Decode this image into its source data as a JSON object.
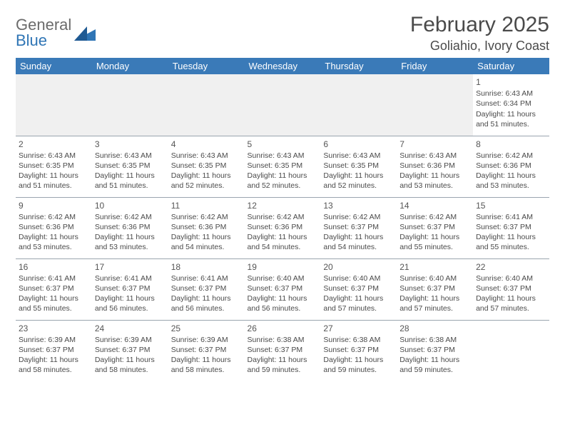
{
  "brand": {
    "word1": "General",
    "word2": "Blue",
    "word1_color": "#6b6b6b",
    "word2_color": "#2f75b5",
    "mark_color": "#2f75b5"
  },
  "title": "February 2025",
  "location": "Goliahio, Ivory Coast",
  "colors": {
    "header_band": "#3a7ab8",
    "header_text": "#ffffff",
    "grid_line": "#9aa5af",
    "empty_row_bg": "#f0f0f0",
    "body_text": "#4a4a4a"
  },
  "weekdays": [
    "Sunday",
    "Monday",
    "Tuesday",
    "Wednesday",
    "Thursday",
    "Friday",
    "Saturday"
  ],
  "weeks": [
    [
      null,
      null,
      null,
      null,
      null,
      null,
      {
        "n": "1",
        "sr": "Sunrise: 6:43 AM",
        "ss": "Sunset: 6:34 PM",
        "dl": "Daylight: 11 hours and 51 minutes."
      }
    ],
    [
      {
        "n": "2",
        "sr": "Sunrise: 6:43 AM",
        "ss": "Sunset: 6:35 PM",
        "dl": "Daylight: 11 hours and 51 minutes."
      },
      {
        "n": "3",
        "sr": "Sunrise: 6:43 AM",
        "ss": "Sunset: 6:35 PM",
        "dl": "Daylight: 11 hours and 51 minutes."
      },
      {
        "n": "4",
        "sr": "Sunrise: 6:43 AM",
        "ss": "Sunset: 6:35 PM",
        "dl": "Daylight: 11 hours and 52 minutes."
      },
      {
        "n": "5",
        "sr": "Sunrise: 6:43 AM",
        "ss": "Sunset: 6:35 PM",
        "dl": "Daylight: 11 hours and 52 minutes."
      },
      {
        "n": "6",
        "sr": "Sunrise: 6:43 AM",
        "ss": "Sunset: 6:35 PM",
        "dl": "Daylight: 11 hours and 52 minutes."
      },
      {
        "n": "7",
        "sr": "Sunrise: 6:43 AM",
        "ss": "Sunset: 6:36 PM",
        "dl": "Daylight: 11 hours and 53 minutes."
      },
      {
        "n": "8",
        "sr": "Sunrise: 6:42 AM",
        "ss": "Sunset: 6:36 PM",
        "dl": "Daylight: 11 hours and 53 minutes."
      }
    ],
    [
      {
        "n": "9",
        "sr": "Sunrise: 6:42 AM",
        "ss": "Sunset: 6:36 PM",
        "dl": "Daylight: 11 hours and 53 minutes."
      },
      {
        "n": "10",
        "sr": "Sunrise: 6:42 AM",
        "ss": "Sunset: 6:36 PM",
        "dl": "Daylight: 11 hours and 53 minutes."
      },
      {
        "n": "11",
        "sr": "Sunrise: 6:42 AM",
        "ss": "Sunset: 6:36 PM",
        "dl": "Daylight: 11 hours and 54 minutes."
      },
      {
        "n": "12",
        "sr": "Sunrise: 6:42 AM",
        "ss": "Sunset: 6:36 PM",
        "dl": "Daylight: 11 hours and 54 minutes."
      },
      {
        "n": "13",
        "sr": "Sunrise: 6:42 AM",
        "ss": "Sunset: 6:37 PM",
        "dl": "Daylight: 11 hours and 54 minutes."
      },
      {
        "n": "14",
        "sr": "Sunrise: 6:42 AM",
        "ss": "Sunset: 6:37 PM",
        "dl": "Daylight: 11 hours and 55 minutes."
      },
      {
        "n": "15",
        "sr": "Sunrise: 6:41 AM",
        "ss": "Sunset: 6:37 PM",
        "dl": "Daylight: 11 hours and 55 minutes."
      }
    ],
    [
      {
        "n": "16",
        "sr": "Sunrise: 6:41 AM",
        "ss": "Sunset: 6:37 PM",
        "dl": "Daylight: 11 hours and 55 minutes."
      },
      {
        "n": "17",
        "sr": "Sunrise: 6:41 AM",
        "ss": "Sunset: 6:37 PM",
        "dl": "Daylight: 11 hours and 56 minutes."
      },
      {
        "n": "18",
        "sr": "Sunrise: 6:41 AM",
        "ss": "Sunset: 6:37 PM",
        "dl": "Daylight: 11 hours and 56 minutes."
      },
      {
        "n": "19",
        "sr": "Sunrise: 6:40 AM",
        "ss": "Sunset: 6:37 PM",
        "dl": "Daylight: 11 hours and 56 minutes."
      },
      {
        "n": "20",
        "sr": "Sunrise: 6:40 AM",
        "ss": "Sunset: 6:37 PM",
        "dl": "Daylight: 11 hours and 57 minutes."
      },
      {
        "n": "21",
        "sr": "Sunrise: 6:40 AM",
        "ss": "Sunset: 6:37 PM",
        "dl": "Daylight: 11 hours and 57 minutes."
      },
      {
        "n": "22",
        "sr": "Sunrise: 6:40 AM",
        "ss": "Sunset: 6:37 PM",
        "dl": "Daylight: 11 hours and 57 minutes."
      }
    ],
    [
      {
        "n": "23",
        "sr": "Sunrise: 6:39 AM",
        "ss": "Sunset: 6:37 PM",
        "dl": "Daylight: 11 hours and 58 minutes."
      },
      {
        "n": "24",
        "sr": "Sunrise: 6:39 AM",
        "ss": "Sunset: 6:37 PM",
        "dl": "Daylight: 11 hours and 58 minutes."
      },
      {
        "n": "25",
        "sr": "Sunrise: 6:39 AM",
        "ss": "Sunset: 6:37 PM",
        "dl": "Daylight: 11 hours and 58 minutes."
      },
      {
        "n": "26",
        "sr": "Sunrise: 6:38 AM",
        "ss": "Sunset: 6:37 PM",
        "dl": "Daylight: 11 hours and 59 minutes."
      },
      {
        "n": "27",
        "sr": "Sunrise: 6:38 AM",
        "ss": "Sunset: 6:37 PM",
        "dl": "Daylight: 11 hours and 59 minutes."
      },
      {
        "n": "28",
        "sr": "Sunrise: 6:38 AM",
        "ss": "Sunset: 6:37 PM",
        "dl": "Daylight: 11 hours and 59 minutes."
      },
      null
    ]
  ]
}
